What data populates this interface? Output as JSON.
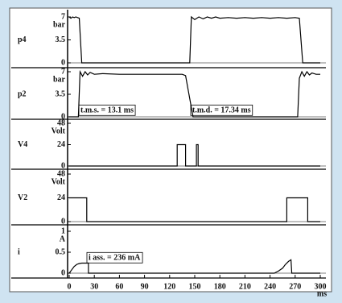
{
  "chart_data": [
    {
      "type": "line",
      "ylabel": "p4",
      "unit": "bar",
      "ylim": [
        0,
        7
      ],
      "yticks": [
        0,
        3.5,
        7
      ],
      "xlim": [
        0,
        300
      ],
      "color": "#000000",
      "x": [
        0,
        2,
        4,
        6,
        8,
        10,
        12,
        15,
        144,
        146,
        150,
        155,
        160,
        165,
        170,
        175,
        180,
        190,
        200,
        210,
        220,
        230,
        240,
        250,
        260,
        270,
        275,
        279,
        300
      ],
      "values": [
        7,
        6.8,
        7,
        6.9,
        7,
        6.9,
        6.8,
        0,
        0,
        7,
        6.6,
        7,
        6.7,
        7,
        6.8,
        7,
        6.8,
        6.9,
        6.8,
        6.9,
        6.8,
        6.9,
        6.8,
        6.9,
        6.8,
        6.9,
        6.8,
        0,
        0
      ]
    },
    {
      "type": "line",
      "ylabel": "p2",
      "unit": "bar",
      "ylim": [
        0,
        7
      ],
      "yticks": [
        0,
        3.5,
        7
      ],
      "xlim": [
        0,
        300
      ],
      "color": "#000000",
      "x": [
        0,
        11,
        13,
        16,
        19,
        22,
        25,
        30,
        40,
        60,
        80,
        100,
        120,
        135,
        139,
        148,
        273,
        275,
        278,
        281,
        284,
        287,
        290,
        295,
        300
      ],
      "values": [
        0,
        0,
        7,
        6.3,
        7,
        6.5,
        6.9,
        6.6,
        6.7,
        6.6,
        6.6,
        6.6,
        6.6,
        6.6,
        6.4,
        0,
        0,
        6,
        7,
        6.3,
        7,
        6.5,
        6.8,
        6.6,
        6.6
      ],
      "annotations": [
        "t.m.s. = 13.1 ms",
        "t.m.d. = 17.34 ms"
      ]
    },
    {
      "type": "line",
      "ylabel": "V4",
      "unit": "Volt",
      "ylim": [
        0,
        48
      ],
      "yticks": [
        0,
        24,
        48
      ],
      "xlim": [
        0,
        300
      ],
      "color": "#000000",
      "x": [
        0,
        129,
        129,
        139,
        139,
        152,
        152,
        154,
        154,
        300
      ],
      "values": [
        0,
        0,
        24,
        24,
        0,
        0,
        24,
        24,
        0,
        0
      ]
    },
    {
      "type": "line",
      "ylabel": "V2",
      "unit": "Volt",
      "ylim": [
        0,
        48
      ],
      "yticks": [
        0,
        24,
        48
      ],
      "xlim": [
        0,
        300
      ],
      "color": "#000000",
      "x": [
        0,
        21,
        21,
        260,
        260,
        285,
        285,
        300
      ],
      "values": [
        24,
        24,
        0,
        0,
        24,
        24,
        0,
        0
      ]
    },
    {
      "type": "line",
      "ylabel": "i",
      "unit": "A",
      "ylim": [
        0,
        1
      ],
      "yticks": [
        0,
        0.5,
        1
      ],
      "xlim": [
        0,
        300
      ],
      "color": "#000000",
      "x": [
        0,
        3,
        6,
        9,
        12,
        15,
        20,
        23,
        23,
        245,
        250,
        255,
        258,
        262,
        265,
        266,
        300
      ],
      "values": [
        0,
        0.08,
        0.16,
        0.21,
        0.23,
        0.24,
        0.24,
        0.24,
        0,
        0,
        0.05,
        0.12,
        0.2,
        0.28,
        0.32,
        0,
        0
      ],
      "annotations": [
        "i ass. = 236 mA"
      ],
      "xticks": [
        0,
        30,
        60,
        90,
        120,
        150,
        180,
        210,
        240,
        270,
        300
      ],
      "xlabel": "ms"
    }
  ]
}
